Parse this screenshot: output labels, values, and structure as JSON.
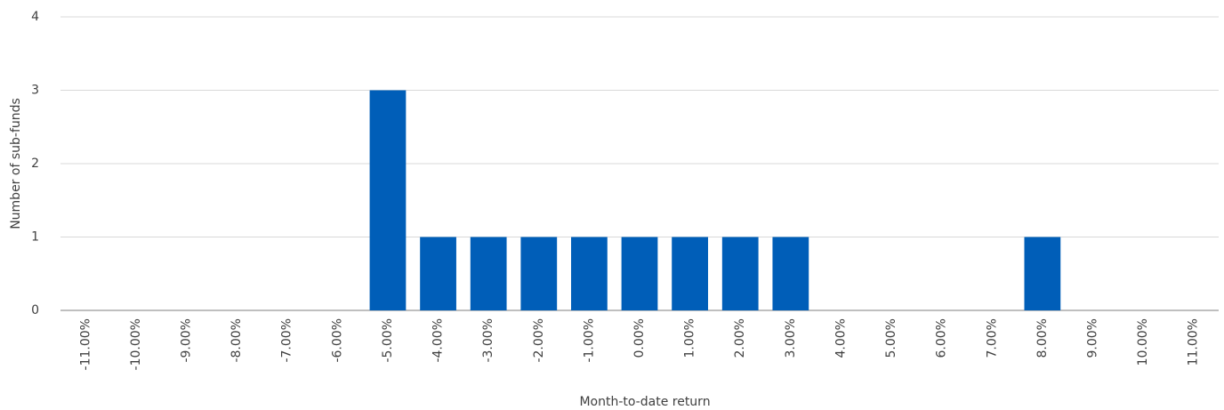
{
  "chart_data": {
    "type": "bar",
    "categories": [
      "-11.00%",
      "-10.00%",
      "-9.00%",
      "-8.00%",
      "-7.00%",
      "-6.00%",
      "-5.00%",
      "-4.00%",
      "-3.00%",
      "-2.00%",
      "-1.00%",
      "0.00%",
      "1.00%",
      "2.00%",
      "3.00%",
      "4.00%",
      "5.00%",
      "6.00%",
      "7.00%",
      "8.00%",
      "9.00%",
      "10.00%",
      "11.00%"
    ],
    "values": [
      0,
      0,
      0,
      0,
      0,
      0,
      3,
      1,
      1,
      1,
      1,
      1,
      1,
      1,
      1,
      0,
      0,
      0,
      0,
      1,
      0,
      0,
      0
    ],
    "color": "#005eb8",
    "x_label": "Month-to-date return",
    "y_label": "Number of sub-funds",
    "ylim": [
      0,
      4
    ],
    "yticks": [
      0,
      1,
      2,
      3,
      4
    ],
    "grid": true
  }
}
